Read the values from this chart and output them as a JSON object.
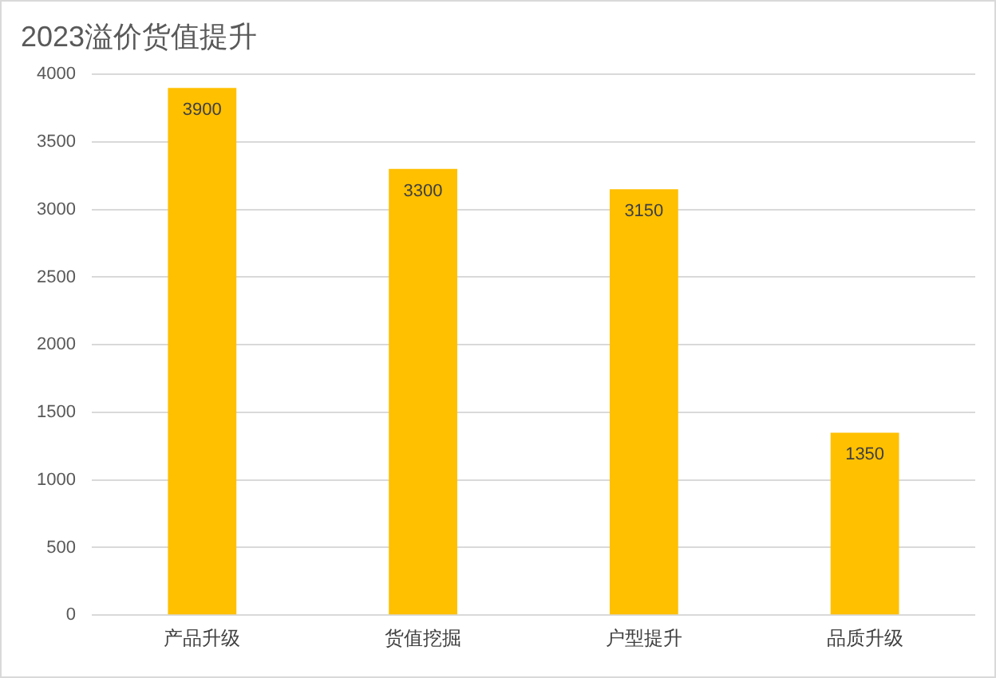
{
  "chart_data": {
    "type": "bar",
    "title": "2023溢价货值提升",
    "categories": [
      "产品升级",
      "货值挖掘",
      "户型提升",
      "品质升级"
    ],
    "values": [
      3900,
      3300,
      3150,
      1350
    ],
    "color": "#ffc000",
    "ylim": [
      0,
      4000
    ],
    "yticks": [
      0,
      500,
      1000,
      1500,
      2000,
      2500,
      3000,
      3500,
      4000
    ],
    "grid": "y",
    "legend": false,
    "data_labels": true
  }
}
